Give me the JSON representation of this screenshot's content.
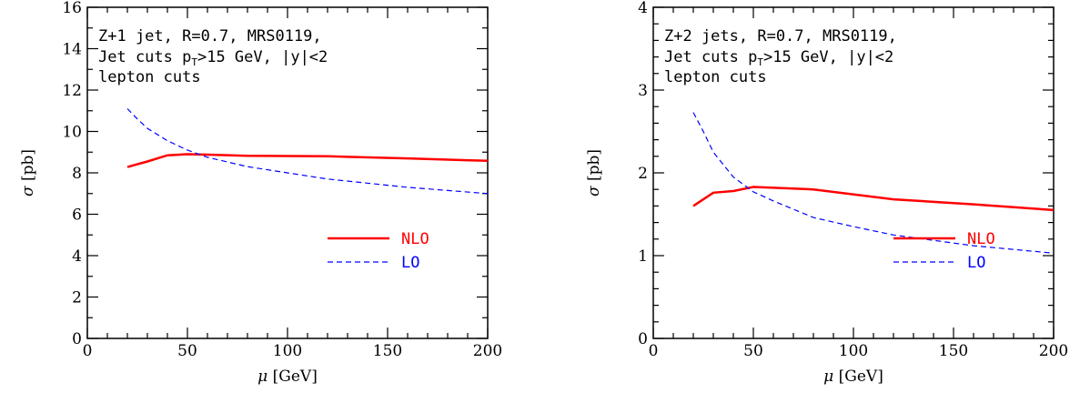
{
  "colors": {
    "nlo": "#ff0000",
    "lo": "#0000ff",
    "axis": "#000000"
  },
  "chart_data": [
    {
      "type": "line",
      "x_axis": {
        "label_symbol": "μ",
        "label_unit": "[GeV]",
        "range": [
          0,
          200
        ],
        "major_ticks": [
          0,
          50,
          100,
          150,
          200
        ],
        "tick_labels": [
          "0",
          "50",
          "100",
          "150",
          "200"
        ]
      },
      "y_axis": {
        "label_symbol": "σ",
        "label_unit": "[pb]",
        "range": [
          0,
          16
        ],
        "major_ticks": [
          0,
          2,
          4,
          6,
          8,
          10,
          12,
          14,
          16
        ],
        "tick_labels": [
          "0",
          "2",
          "4",
          "6",
          "8",
          "10",
          "12",
          "14",
          "16"
        ]
      },
      "annotation": {
        "line1": "Z+1 jet, R=0.7, MRS0119,",
        "line2_prefix": "Jet cuts p",
        "line2_sub": "T",
        "line2_suffix": ">15 GeV, |y|<2",
        "line3": "lepton cuts"
      },
      "legend_position": "lower-right",
      "series": [
        {
          "name": "NLO",
          "style": "solid",
          "color": "#ff0000",
          "x": [
            20,
            30,
            40,
            50,
            60,
            80,
            120,
            160,
            200
          ],
          "y": [
            8.28,
            8.55,
            8.85,
            8.9,
            8.88,
            8.82,
            8.8,
            8.7,
            8.58
          ]
        },
        {
          "name": "LO",
          "style": "dashed",
          "color": "#0000ff",
          "x": [
            20,
            25,
            30,
            40,
            50,
            60,
            80,
            100,
            120,
            160,
            200
          ],
          "y": [
            11.1,
            10.6,
            10.15,
            9.55,
            9.1,
            8.75,
            8.3,
            8.0,
            7.7,
            7.3,
            7.0
          ]
        }
      ]
    },
    {
      "type": "line",
      "x_axis": {
        "label_symbol": "μ",
        "label_unit": "[GeV]",
        "range": [
          0,
          200
        ],
        "major_ticks": [
          0,
          50,
          100,
          150,
          200
        ],
        "tick_labels": [
          "0",
          "50",
          "100",
          "150",
          "200"
        ]
      },
      "y_axis": {
        "label_symbol": "σ",
        "label_unit": "[pb]",
        "range": [
          0,
          4
        ],
        "major_ticks": [
          0,
          1,
          2,
          3,
          4
        ],
        "tick_labels": [
          "0",
          "1",
          "2",
          "3",
          "4"
        ]
      },
      "annotation": {
        "line1": "Z+2 jets, R=0.7, MRS0119,",
        "line2_prefix": "Jet cuts p",
        "line2_sub": "T",
        "line2_suffix": ">15 GeV, |y|<2",
        "line3": "lepton cuts"
      },
      "legend_position": "lower-right",
      "series": [
        {
          "name": "NLO",
          "style": "solid",
          "color": "#ff0000",
          "x": [
            20,
            30,
            40,
            50,
            60,
            80,
            120,
            160,
            200
          ],
          "y": [
            1.6,
            1.76,
            1.78,
            1.83,
            1.82,
            1.8,
            1.68,
            1.62,
            1.55
          ]
        },
        {
          "name": "LO",
          "style": "dashed",
          "color": "#0000ff",
          "x": [
            20,
            25,
            30,
            40,
            50,
            60,
            80,
            100,
            120,
            160,
            200
          ],
          "y": [
            2.73,
            2.5,
            2.25,
            1.95,
            1.77,
            1.66,
            1.46,
            1.35,
            1.25,
            1.12,
            1.03
          ]
        }
      ]
    }
  ]
}
